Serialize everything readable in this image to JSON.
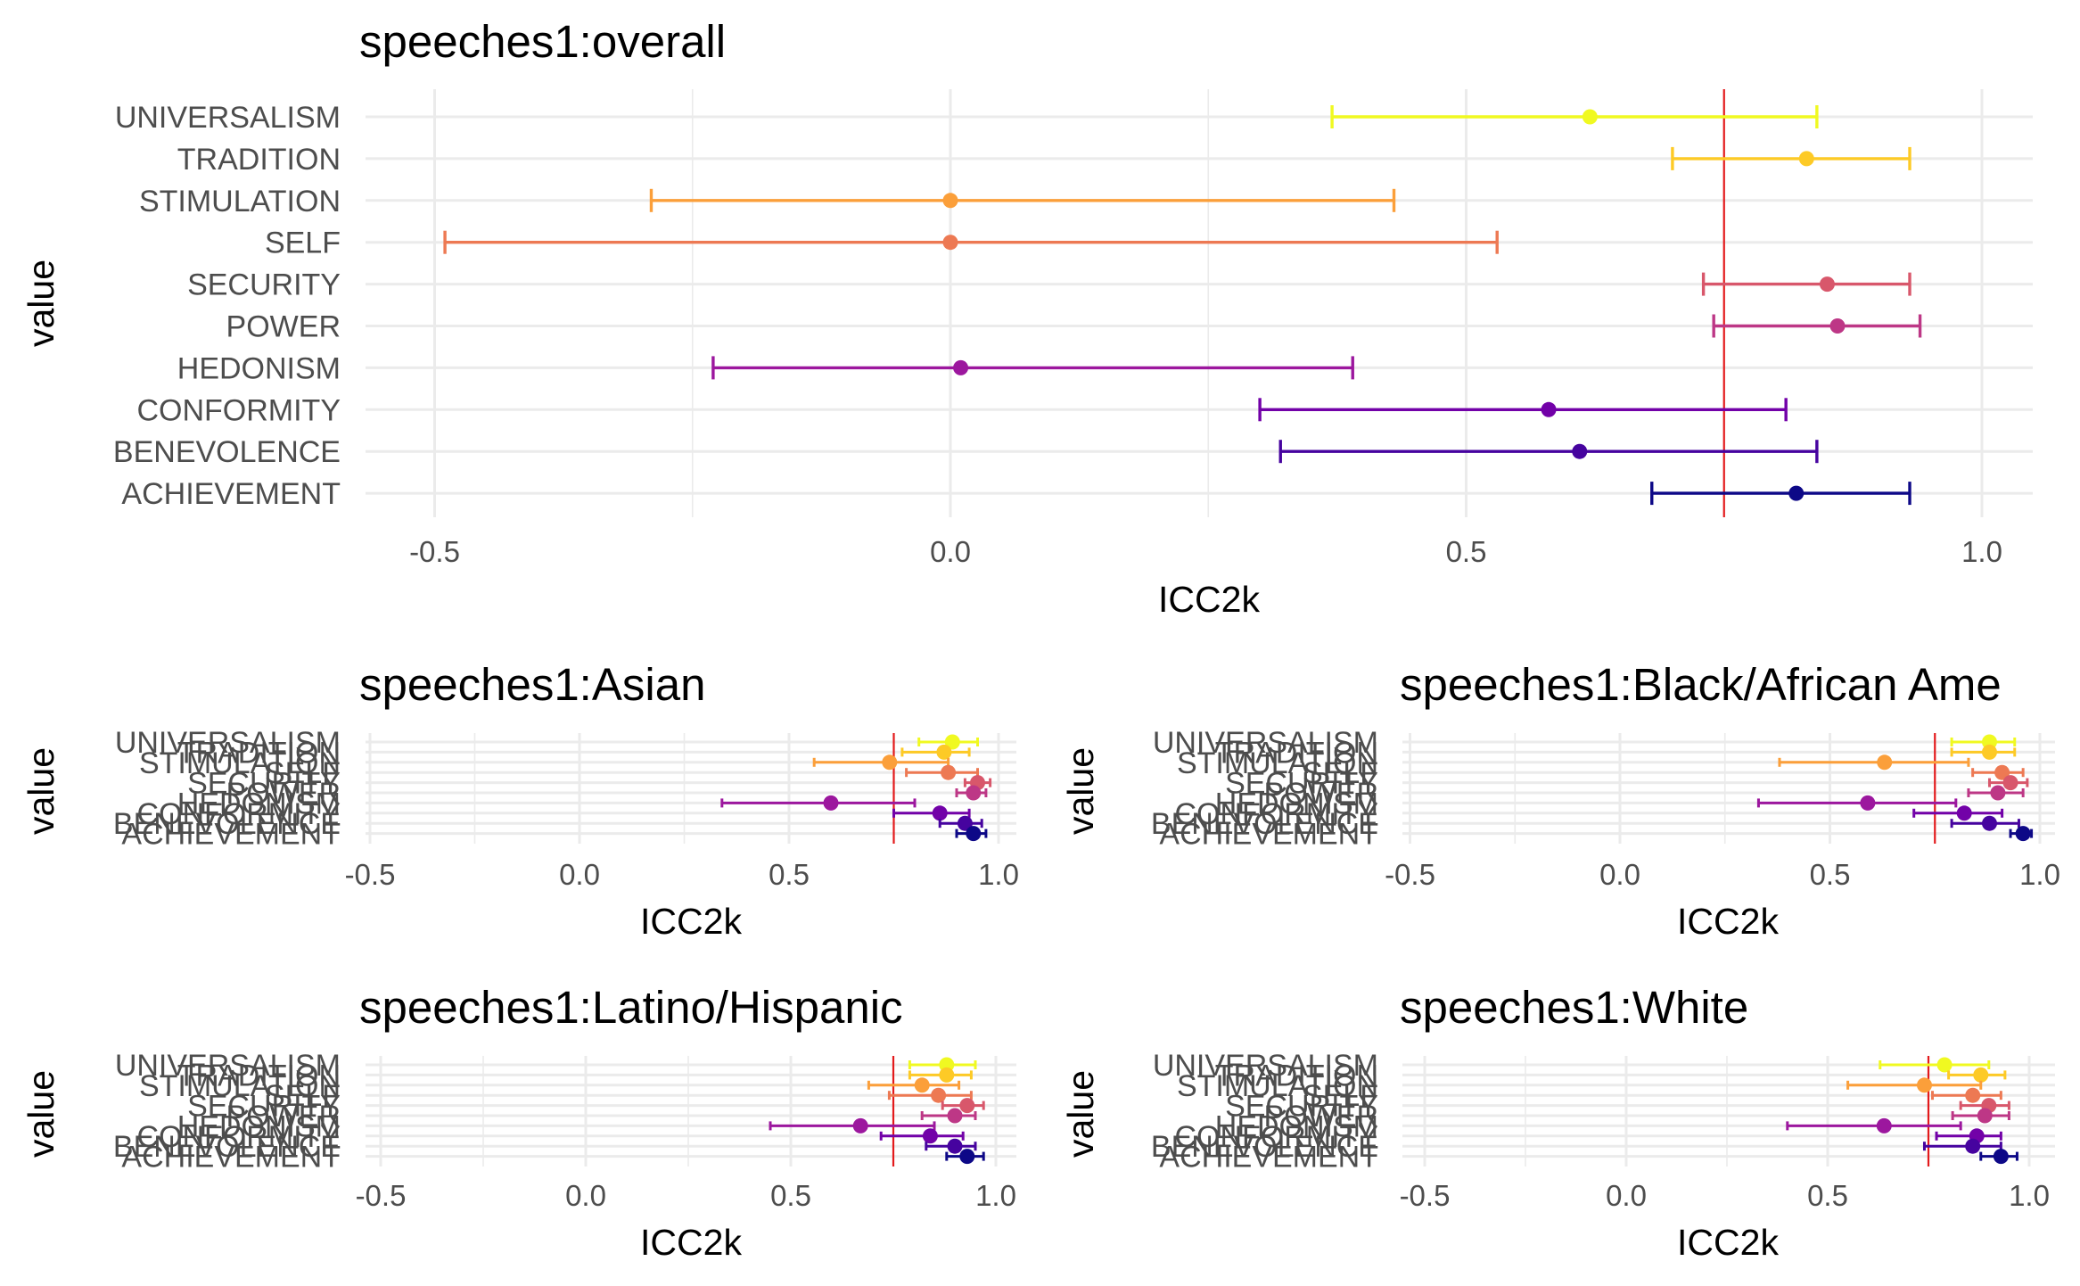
{
  "chart_data": [
    {
      "type": "errorbar-dot",
      "title": "speeches1:overall",
      "xlabel": "ICC2k",
      "ylabel": "value",
      "xlim": [
        -0.6,
        1.06
      ],
      "xticks": [
        -0.5,
        0.0,
        0.5,
        1.0
      ],
      "xtick_labels": [
        "-0.5",
        "0.0",
        "0.5",
        "1.0"
      ],
      "reference_line": 0.75,
      "grid": true,
      "categories": [
        "ACHIEVEMENT",
        "BENEVOLENCE",
        "CONFORMITY",
        "HEDONISM",
        "POWER",
        "SECURITY",
        "SELF",
        "STIMULATION",
        "TRADITION",
        "UNIVERSALISM"
      ],
      "points": [
        {
          "category": "UNIVERSALISM",
          "estimate": 0.62,
          "lower": 0.37,
          "upper": 0.84
        },
        {
          "category": "TRADITION",
          "estimate": 0.83,
          "lower": 0.7,
          "upper": 0.93
        },
        {
          "category": "STIMULATION",
          "estimate": 0.0,
          "lower": -0.29,
          "upper": 0.43
        },
        {
          "category": "SELF",
          "estimate": 0.0,
          "lower": -0.49,
          "upper": 0.53
        },
        {
          "category": "SECURITY",
          "estimate": 0.85,
          "lower": 0.73,
          "upper": 0.93
        },
        {
          "category": "POWER",
          "estimate": 0.86,
          "lower": 0.74,
          "upper": 0.94
        },
        {
          "category": "HEDONISM",
          "estimate": 0.01,
          "lower": -0.23,
          "upper": 0.39
        },
        {
          "category": "CONFORMITY",
          "estimate": 0.58,
          "lower": 0.3,
          "upper": 0.81
        },
        {
          "category": "BENEVOLENCE",
          "estimate": 0.61,
          "lower": 0.32,
          "upper": 0.84
        },
        {
          "category": "ACHIEVEMENT",
          "estimate": 0.82,
          "lower": 0.68,
          "upper": 0.93
        }
      ]
    },
    {
      "type": "errorbar-dot",
      "title": "speeches1:Asian",
      "xlabel": "ICC2k",
      "ylabel": "value",
      "xlim": [
        -0.6,
        1.06
      ],
      "xticks": [
        -0.5,
        0.0,
        0.5,
        1.0
      ],
      "xtick_labels": [
        "-0.5",
        "0.0",
        "0.5",
        "1.0"
      ],
      "reference_line": 0.75,
      "grid": true,
      "categories": [
        "ACHIEVEMENT",
        "BENEVOLENCE",
        "CONFORMITY",
        "HEDONISM",
        "POWER",
        "SECURITY",
        "SELF",
        "STIMULATION",
        "TRADITION",
        "UNIVERSALISM"
      ],
      "points": [
        {
          "category": "UNIVERSALISM",
          "estimate": 0.89,
          "lower": 0.81,
          "upper": 0.95
        },
        {
          "category": "TRADITION",
          "estimate": 0.87,
          "lower": 0.77,
          "upper": 0.93
        },
        {
          "category": "STIMULATION",
          "estimate": 0.74,
          "lower": 0.56,
          "upper": 0.88
        },
        {
          "category": "SELF",
          "estimate": 0.88,
          "lower": 0.78,
          "upper": 0.95
        },
        {
          "category": "SECURITY",
          "estimate": 0.95,
          "lower": 0.92,
          "upper": 0.98
        },
        {
          "category": "POWER",
          "estimate": 0.94,
          "lower": 0.9,
          "upper": 0.97
        },
        {
          "category": "HEDONISM",
          "estimate": 0.6,
          "lower": 0.34,
          "upper": 0.8
        },
        {
          "category": "CONFORMITY",
          "estimate": 0.86,
          "lower": 0.75,
          "upper": 0.93
        },
        {
          "category": "BENEVOLENCE",
          "estimate": 0.92,
          "lower": 0.86,
          "upper": 0.96
        },
        {
          "category": "ACHIEVEMENT",
          "estimate": 0.94,
          "lower": 0.9,
          "upper": 0.97
        }
      ]
    },
    {
      "type": "errorbar-dot",
      "title": "speeches1:Black/African Ame",
      "xlabel": "ICC2k",
      "ylabel": "value",
      "xlim": [
        -0.6,
        1.06
      ],
      "xticks": [
        -0.5,
        0.0,
        0.5,
        1.0
      ],
      "xtick_labels": [
        "-0.5",
        "0.0",
        "0.5",
        "1.0"
      ],
      "reference_line": 0.75,
      "grid": true,
      "categories": [
        "ACHIEVEMENT",
        "BENEVOLENCE",
        "CONFORMITY",
        "HEDONISM",
        "POWER",
        "SECURITY",
        "SELF",
        "STIMULATION",
        "TRADITION",
        "UNIVERSALISM"
      ],
      "points": [
        {
          "category": "UNIVERSALISM",
          "estimate": 0.88,
          "lower": 0.79,
          "upper": 0.94
        },
        {
          "category": "TRADITION",
          "estimate": 0.88,
          "lower": 0.79,
          "upper": 0.94
        },
        {
          "category": "STIMULATION",
          "estimate": 0.63,
          "lower": 0.38,
          "upper": 0.83
        },
        {
          "category": "SELF",
          "estimate": 0.91,
          "lower": 0.84,
          "upper": 0.96
        },
        {
          "category": "SECURITY",
          "estimate": 0.93,
          "lower": 0.88,
          "upper": 0.97
        },
        {
          "category": "POWER",
          "estimate": 0.9,
          "lower": 0.83,
          "upper": 0.96
        },
        {
          "category": "HEDONISM",
          "estimate": 0.59,
          "lower": 0.33,
          "upper": 0.8
        },
        {
          "category": "CONFORMITY",
          "estimate": 0.82,
          "lower": 0.7,
          "upper": 0.91
        },
        {
          "category": "BENEVOLENCE",
          "estimate": 0.88,
          "lower": 0.79,
          "upper": 0.95
        },
        {
          "category": "ACHIEVEMENT",
          "estimate": 0.96,
          "lower": 0.93,
          "upper": 0.98
        }
      ]
    },
    {
      "type": "errorbar-dot",
      "title": "speeches1:Latino/Hispanic",
      "xlabel": "ICC2k",
      "ylabel": "value",
      "xlim": [
        -0.6,
        1.06
      ],
      "xticks": [
        -0.5,
        0.0,
        0.5,
        1.0
      ],
      "xtick_labels": [
        "-0.5",
        "0.0",
        "0.5",
        "1.0"
      ],
      "reference_line": 0.75,
      "grid": true,
      "categories": [
        "ACHIEVEMENT",
        "BENEVOLENCE",
        "CONFORMITY",
        "HEDONISM",
        "POWER",
        "SECURITY",
        "SELF",
        "STIMULATION",
        "TRADITION",
        "UNIVERSALISM"
      ],
      "points": [
        {
          "category": "UNIVERSALISM",
          "estimate": 0.88,
          "lower": 0.79,
          "upper": 0.95
        },
        {
          "category": "TRADITION",
          "estimate": 0.88,
          "lower": 0.79,
          "upper": 0.94
        },
        {
          "category": "STIMULATION",
          "estimate": 0.82,
          "lower": 0.69,
          "upper": 0.91
        },
        {
          "category": "SELF",
          "estimate": 0.86,
          "lower": 0.74,
          "upper": 0.94
        },
        {
          "category": "SECURITY",
          "estimate": 0.93,
          "lower": 0.87,
          "upper": 0.97
        },
        {
          "category": "POWER",
          "estimate": 0.9,
          "lower": 0.82,
          "upper": 0.95
        },
        {
          "category": "HEDONISM",
          "estimate": 0.67,
          "lower": 0.45,
          "upper": 0.85
        },
        {
          "category": "CONFORMITY",
          "estimate": 0.84,
          "lower": 0.72,
          "upper": 0.92
        },
        {
          "category": "BENEVOLENCE",
          "estimate": 0.9,
          "lower": 0.83,
          "upper": 0.95
        },
        {
          "category": "ACHIEVEMENT",
          "estimate": 0.93,
          "lower": 0.88,
          "upper": 0.97
        }
      ]
    },
    {
      "type": "errorbar-dot",
      "title": "speeches1:White",
      "xlabel": "ICC2k",
      "ylabel": "value",
      "xlim": [
        -0.6,
        1.06
      ],
      "xticks": [
        -0.5,
        0.0,
        0.5,
        1.0
      ],
      "xtick_labels": [
        "-0.5",
        "0.0",
        "0.5",
        "1.0"
      ],
      "reference_line": 0.75,
      "grid": true,
      "categories": [
        "ACHIEVEMENT",
        "BENEVOLENCE",
        "CONFORMITY",
        "HEDONISM",
        "POWER",
        "SECURITY",
        "SELF",
        "STIMULATION",
        "TRADITION",
        "UNIVERSALISM"
      ],
      "points": [
        {
          "category": "UNIVERSALISM",
          "estimate": 0.79,
          "lower": 0.63,
          "upper": 0.9
        },
        {
          "category": "TRADITION",
          "estimate": 0.88,
          "lower": 0.8,
          "upper": 0.94
        },
        {
          "category": "STIMULATION",
          "estimate": 0.74,
          "lower": 0.55,
          "upper": 0.88
        },
        {
          "category": "SELF",
          "estimate": 0.86,
          "lower": 0.76,
          "upper": 0.93
        },
        {
          "category": "SECURITY",
          "estimate": 0.9,
          "lower": 0.83,
          "upper": 0.95
        },
        {
          "category": "POWER",
          "estimate": 0.89,
          "lower": 0.81,
          "upper": 0.95
        },
        {
          "category": "HEDONISM",
          "estimate": 0.64,
          "lower": 0.4,
          "upper": 0.83
        },
        {
          "category": "CONFORMITY",
          "estimate": 0.87,
          "lower": 0.77,
          "upper": 0.93
        },
        {
          "category": "BENEVOLENCE",
          "estimate": 0.86,
          "lower": 0.74,
          "upper": 0.93
        },
        {
          "category": "ACHIEVEMENT",
          "estimate": 0.93,
          "lower": 0.88,
          "upper": 0.97
        }
      ]
    }
  ],
  "colors": {
    "UNIVERSALISM": "#F0F921",
    "TRADITION": "#FDCA26",
    "STIMULATION": "#FB9F3A",
    "SELF": "#ED7953",
    "SECURITY": "#D8576B",
    "POWER": "#BD3786",
    "HEDONISM": "#9C179E",
    "CONFORMITY": "#7201A8",
    "BENEVOLENCE": "#46039F",
    "ACHIEVEMENT": "#0D0887",
    "reference_line": "#E31A1C",
    "grid": "#EBEBEB"
  }
}
